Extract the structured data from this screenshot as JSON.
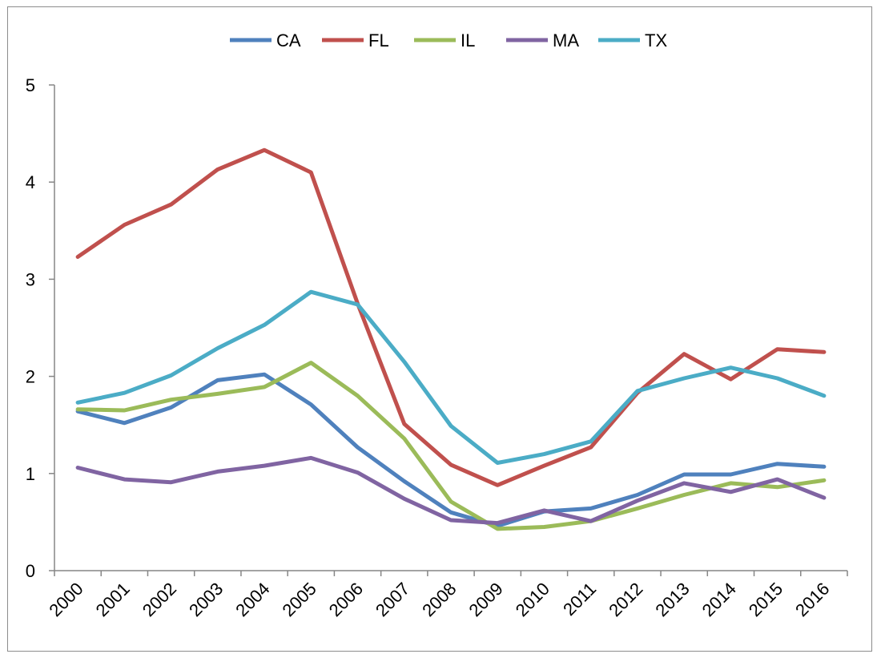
{
  "chart_data": {
    "type": "line",
    "title": "",
    "xlabel": "",
    "ylabel": "",
    "ylim": [
      0,
      5
    ],
    "y_ticks": [
      "0",
      "1",
      "2",
      "3",
      "4",
      "5"
    ],
    "categories": [
      "2000",
      "2001",
      "2002",
      "2003",
      "2004",
      "2005",
      "2006",
      "2007",
      "2008",
      "2009",
      "2010",
      "2011",
      "2012",
      "2013",
      "2014",
      "2015",
      "2016"
    ],
    "legend_position": "top",
    "grid": false,
    "series": [
      {
        "name": "CA",
        "color": "#4f81bd",
        "values": [
          1.64,
          1.52,
          1.68,
          1.96,
          2.02,
          1.71,
          1.27,
          0.92,
          0.6,
          0.46,
          0.61,
          0.64,
          0.78,
          0.99,
          0.99,
          1.1,
          1.07
        ]
      },
      {
        "name": "FL",
        "color": "#c0504d",
        "values": [
          3.23,
          3.56,
          3.77,
          4.13,
          4.33,
          4.1,
          2.75,
          1.51,
          1.09,
          0.88,
          1.08,
          1.27,
          1.83,
          2.23,
          1.97,
          2.28,
          2.25
        ]
      },
      {
        "name": "IL",
        "color": "#9bbb59",
        "values": [
          1.66,
          1.65,
          1.76,
          1.82,
          1.89,
          2.14,
          1.8,
          1.36,
          0.71,
          0.43,
          0.45,
          0.51,
          0.64,
          0.78,
          0.9,
          0.86,
          0.93
        ]
      },
      {
        "name": "MA",
        "color": "#8064a2",
        "values": [
          1.06,
          0.94,
          0.91,
          1.02,
          1.08,
          1.16,
          1.01,
          0.74,
          0.52,
          0.49,
          0.62,
          0.51,
          0.72,
          0.9,
          0.81,
          0.94,
          0.75
        ]
      },
      {
        "name": "TX",
        "color": "#4bacc6",
        "values": [
          1.73,
          1.83,
          2.01,
          2.29,
          2.53,
          2.87,
          2.74,
          2.15,
          1.49,
          1.11,
          1.2,
          1.33,
          1.85,
          1.98,
          2.09,
          1.98,
          1.8
        ]
      }
    ]
  }
}
